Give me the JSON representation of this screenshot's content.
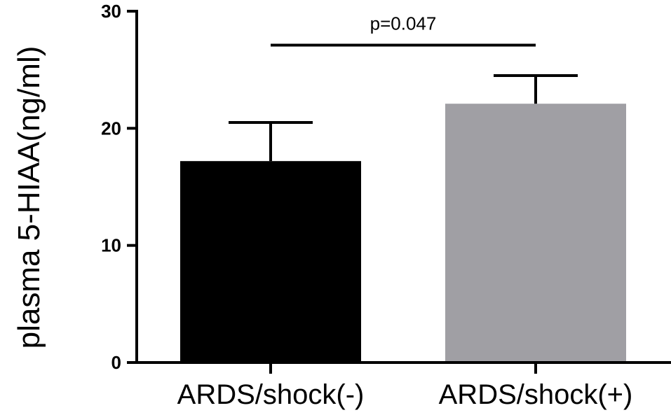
{
  "chart_data": {
    "type": "bar",
    "categories": [
      "ARDS/shock(-)",
      "ARDS/shock(+)"
    ],
    "values": [
      17.2,
      22.1
    ],
    "error_upper": [
      20.5,
      24.5
    ],
    "colors": [
      "#000000",
      "#a09fa4"
    ],
    "ylabel": "plasma 5-HIAA(ng/ml)",
    "xlabel": "",
    "ylim": [
      0,
      30
    ],
    "yticks": [
      0,
      10,
      20,
      30
    ],
    "ytick_labels": [
      "0",
      "10",
      "20",
      "30"
    ],
    "grid": false,
    "annotation": {
      "text": "p=0.047",
      "bracket_value": 27.1
    }
  }
}
